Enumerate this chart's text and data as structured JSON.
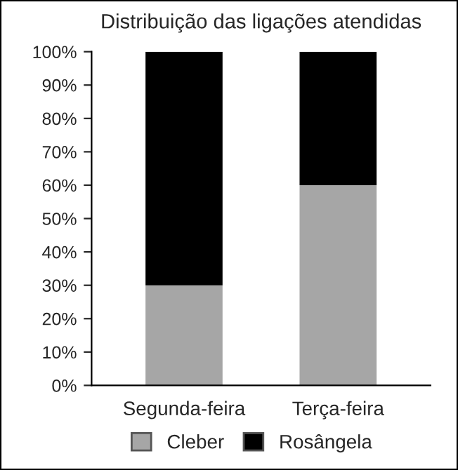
{
  "chart_data": {
    "type": "bar",
    "title": "Distribuição das ligações atendidas",
    "stacked": true,
    "categories": [
      "Segunda-feira",
      "Terça-feira"
    ],
    "series": [
      {
        "name": "Cleber",
        "color": "#a6a6a6",
        "values": [
          30,
          60
        ]
      },
      {
        "name": "Rosângela",
        "color": "#000000",
        "values": [
          70,
          40
        ]
      }
    ],
    "ylim": [
      0,
      100
    ],
    "yticks": [
      {
        "value": 0,
        "label": "0%"
      },
      {
        "value": 10,
        "label": "10%"
      },
      {
        "value": 20,
        "label": "20%"
      },
      {
        "value": 30,
        "label": "30%"
      },
      {
        "value": 40,
        "label": "40%"
      },
      {
        "value": 50,
        "label": "50%"
      },
      {
        "value": 60,
        "label": "60%"
      },
      {
        "value": 70,
        "label": "70%"
      },
      {
        "value": 80,
        "label": "80%"
      },
      {
        "value": 90,
        "label": "90%"
      },
      {
        "value": 100,
        "label": "100%"
      }
    ],
    "grid": false,
    "legend": "bottom"
  }
}
